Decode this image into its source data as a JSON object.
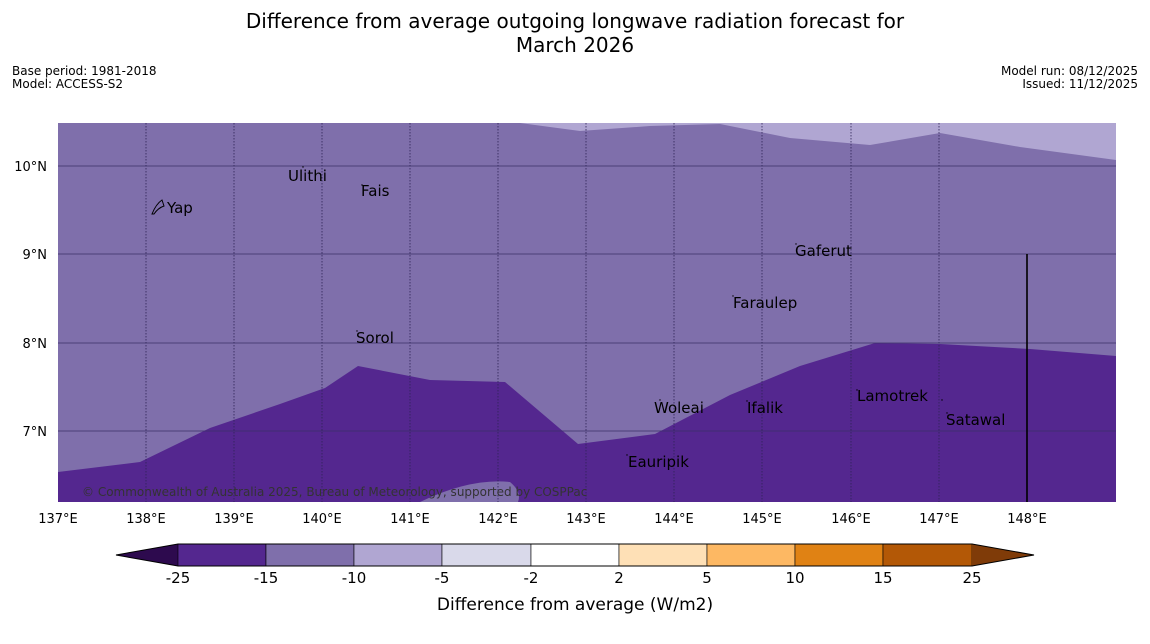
{
  "title_line1": "Difference from average outgoing longwave radiation forecast for",
  "title_line2": "March 2026",
  "base_period": "Base period: 1981-2018",
  "model": "Model: ACCESS-S2",
  "model_run": "Model run: 08/12/2025",
  "issued": "Issued: 11/12/2025",
  "map": {
    "lon_labels": [
      "137°E",
      "138°E",
      "139°E",
      "140°E",
      "141°E",
      "142°E",
      "143°E",
      "144°E",
      "145°E",
      "146°E",
      "147°E",
      "148°E"
    ],
    "lat_labels": [
      "10°N",
      "9°N",
      "8°N",
      "7°N"
    ],
    "places": [
      "Yap",
      "Ulithi",
      "Fais",
      "Sorol",
      "Gaferut",
      "Faraulep",
      "Woleai",
      "Ifalik",
      "Lamotrek",
      "Satawal",
      "Eauripik"
    ],
    "copyright": "© Commonwealth of Australia 2025, Bureau of Meteorology, supported by COSPPac"
  },
  "colorbar": {
    "ticks": [
      "-25",
      "-15",
      "-10",
      "-5",
      "-2",
      "2",
      "5",
      "10",
      "15",
      "25"
    ],
    "label": "Difference from average (W/m2)",
    "colors": [
      "#2d0a4e",
      "#54278f",
      "#7f6fab",
      "#b0a6d2",
      "#d9d9ea",
      "#ffffff",
      "#fee0b6",
      "#fdb863",
      "#e08214",
      "#b35806",
      "#7f3b08"
    ]
  }
}
